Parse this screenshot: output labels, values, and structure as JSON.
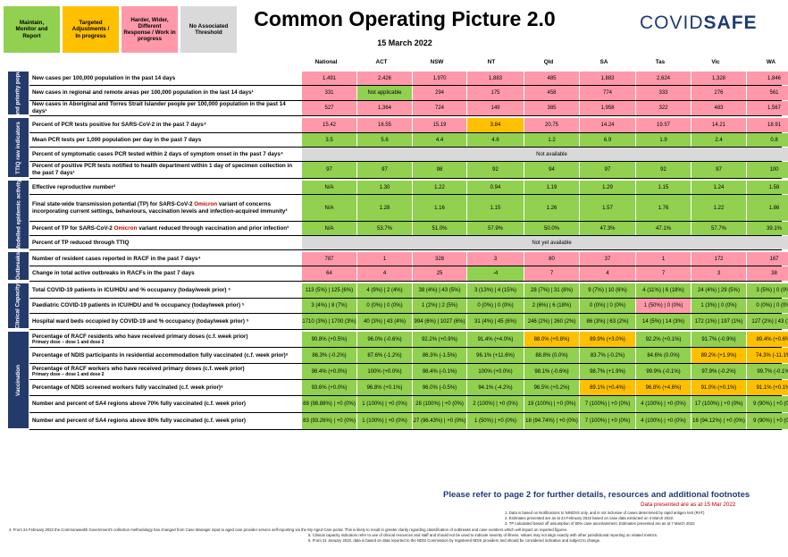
{
  "legend": [
    {
      "label": "Maintain,\nMonitor and\nReport",
      "color": "#92d050"
    },
    {
      "label": "Targeted\nAdjustments /\nIn progress",
      "color": "#ffc000"
    },
    {
      "label": "Harder, Wider,\nDifferent\nResponse / Work in\nprogress",
      "color": "#ff99aa"
    },
    {
      "label": "No Associated\nThreshold",
      "color": "#d9d9d9"
    }
  ],
  "header": {
    "title": "Common Operating Picture 2.0",
    "date": "15 March 2022",
    "brand_a": "COVID",
    "brand_b": "SAFE"
  },
  "columns": [
    "National",
    "ACT",
    "NSW",
    "NT",
    "Qld",
    "SA",
    "Tas",
    "Vic",
    "WA"
  ],
  "groups": [
    {
      "name": "Cases and priority populations"
    },
    {
      "name": "TTIQ raw indicators"
    },
    {
      "name": "Modelled epidemic activity"
    },
    {
      "name": "Outbreaks"
    },
    {
      "name": "Clinical Capacity"
    },
    {
      "name": "Vaccination"
    }
  ],
  "rows": [
    {
      "label": "New cases per 100,000 population in the past 14 days",
      "sub": "",
      "values": [
        "1,491",
        "2,426",
        "1,970",
        "1,883",
        "485",
        "1,883",
        "2,624",
        "1,328",
        "1,846"
      ],
      "colors": [
        "p",
        "p",
        "p",
        "p",
        "p",
        "p",
        "p",
        "p",
        "p"
      ]
    },
    {
      "label": "New cases in regional and remote areas per 100,000 population in the last 14 days¹",
      "sub": "",
      "values": [
        "331",
        "Not applicable",
        "294",
        "175",
        "458",
        "774",
        "333",
        "276",
        "561"
      ],
      "colors": [
        "p",
        "g",
        "p",
        "p",
        "p",
        "p",
        "p",
        "p",
        "p"
      ]
    },
    {
      "label": "New cases in Aboriginal and Torres Strait Islander people per 100,000 population in the past 14 days¹",
      "sub": "",
      "values": [
        "527",
        "1,364",
        "724",
        "149",
        "385",
        "1,958",
        "322",
        "483",
        "1,567"
      ],
      "colors": [
        "p",
        "p",
        "p",
        "p",
        "p",
        "p",
        "p",
        "p",
        "p"
      ]
    },
    {
      "label": "Percent of PCR tests positive for SARS-CoV-2 in the past 7 days⁴",
      "sub": "",
      "values": [
        "15.42",
        "16.55",
        "15.19",
        "3.84",
        "20.75",
        "14.24",
        "19.57",
        "14.21",
        "18.91"
      ],
      "colors": [
        "p",
        "p",
        "p",
        "o",
        "p",
        "p",
        "p",
        "p",
        "p"
      ]
    },
    {
      "label": "Mean PCR tests per 1,000 population per day in the past 7 days",
      "sub": "",
      "values": [
        "3.5",
        "5.6",
        "4.4",
        "4.6",
        "1.2",
        "6.9",
        "1.9",
        "2.4",
        "0.8"
      ],
      "colors": [
        "g",
        "g",
        "g",
        "g",
        "g",
        "g",
        "g",
        "g",
        "g"
      ]
    },
    {
      "label": "Percent of symptomatic cases PCR tested within 2 days of symptom onset in the past 7 days⁴",
      "sub": "",
      "merged": "Not available"
    },
    {
      "label": "Percent of positive PCR tests notified to health department within 1 day of specimen collection in the past 7 days¹",
      "sub": "",
      "values": [
        "97",
        "97",
        "98",
        "92",
        "94",
        "97",
        "92",
        "97",
        "100"
      ],
      "colors": [
        "G",
        "G",
        "G",
        "G",
        "G",
        "G",
        "G",
        "G",
        "G"
      ]
    },
    {
      "label": "Effective reproductive number²",
      "sub": "",
      "values": [
        "N/A",
        "1.30",
        "1.22",
        "0.94",
        "1.19",
        "1.29",
        "1.15",
        "1.24",
        "1.58"
      ],
      "colors": [
        "g",
        "g",
        "g",
        "g",
        "g",
        "g",
        "g",
        "g",
        "g"
      ]
    },
    {
      "label": "Final state-wide transmission potential (TP) for SARS-CoV-2 Omicron variant of concerns incorporating current settings, behaviours, vaccination levels and infection-acquired immunity³",
      "sub": "",
      "values": [
        "N/A",
        "1.28",
        "1.16",
        "1.15",
        "1.26",
        "1.57",
        "1.76",
        "1.22",
        "1.86"
      ],
      "colors": [
        "g",
        "g",
        "g",
        "g",
        "g",
        "g",
        "g",
        "g",
        "g"
      ]
    },
    {
      "label": "Percent of TP for SARS-CoV-2 Omicron variant reduced through vaccination and prior infection³",
      "sub": "",
      "values": [
        "N/A",
        "53.7%",
        "51.0%",
        "57.9%",
        "50.0%",
        "47.3%",
        "47.1%",
        "57.7%",
        "39.1%"
      ],
      "colors": [
        "g",
        "g",
        "g",
        "g",
        "g",
        "g",
        "g",
        "g",
        "g"
      ]
    },
    {
      "label": "Percent of TP reduced through TTIQ",
      "sub": "",
      "merged": "Not yet available"
    },
    {
      "label": "Number of resident cases reported in RACF in the past 7 days⁴",
      "sub": "",
      "values": [
        "787",
        "1",
        "328",
        "3",
        "80",
        "37",
        "1",
        "172",
        "167"
      ],
      "colors": [
        "p",
        "p",
        "p",
        "p",
        "p",
        "p",
        "p",
        "p",
        "p"
      ]
    },
    {
      "label": "Change in total active outbreaks in RACFs in the past 7 days",
      "sub": "",
      "values": [
        "64",
        "4",
        "25",
        "-4",
        "7",
        "4",
        "7",
        "3",
        "38"
      ],
      "colors": [
        "p",
        "p",
        "p",
        "G",
        "p",
        "p",
        "p",
        "p",
        "p"
      ]
    },
    {
      "label": "Total COVID-19 patients in ICU/HDU and % occupancy (today/week prior) ⁵",
      "sub": "",
      "values": [
        "113 (5%) | 125 (6%)",
        "4 (9%) | 2 (4%)",
        "38 (4%) | 43 (5%)",
        "3 (13%) | 4 (15%)",
        "28 (7%) | 31 (8%)",
        "9 (7%) | 10 (6%)",
        "4 (11%) | 6 (18%)",
        "24 (4%) | 29 (5%)",
        "3 (5%) | 0 (0%)"
      ],
      "colors": [
        "g",
        "g",
        "g",
        "g",
        "g",
        "g",
        "g",
        "g",
        "g"
      ]
    },
    {
      "label": "Paediatric COVID-19 patients in ICU/HDU and % occupancy (today/week prior) ⁵",
      "sub": "",
      "values": [
        "3 (4%) | 8 (7%)",
        "0 (0%) | 0 (0%)",
        "1 (2%) | 2 (5%)",
        "0 (0%) | 0 (0%)",
        "2 (6%) | 6 (18%)",
        "0 (0%) | 0 (0%)",
        "1 (50%) | 0 (0%)",
        "1 (3%) | 0 (0%)",
        "0 (0%) | 0 (0%)"
      ],
      "colors": [
        "g",
        "g",
        "g",
        "g",
        "g",
        "g",
        "p",
        "g",
        "g"
      ]
    },
    {
      "label": "Hospital ward beds occupied by COVID-19 and % occupancy (today/week prior) ⁵",
      "sub": "",
      "values": [
        "1710 (3%) | 1700 (3%)",
        "40 (3%) | 43 (4%)",
        "994 (6%) | 1027 (6%)",
        "31 (4%) | 45 (6%)",
        "246 (2%) | 260 (2%)",
        "86 (3%) | 63 (2%)",
        "14 (5%) | 14 (3%)",
        "172 (1%) | 197 (1%)",
        "127 (2%) | 43 (1%)"
      ],
      "colors": [
        "g",
        "g",
        "g",
        "g",
        "g",
        "g",
        "g",
        "g",
        "g"
      ]
    },
    {
      "label": "Percentage of RACF residents who have received primary doses (c.f. week prior)",
      "sub": "Primary dose – dose 1 and dose 2",
      "values": [
        "90.8% (+0.5%)",
        "96.0% (-0.6%)",
        "92.2% (+0.9%)",
        "91.4% (+4.0%)",
        "88.0% (+0.8%)",
        "89.9% (+3.0%)",
        "92.2% (+0.1%)",
        "91.7% (-0.9%)",
        "89.4% (+0.6%)"
      ],
      "colors": [
        "g",
        "g",
        "g",
        "g",
        "o",
        "o",
        "g",
        "g",
        "o"
      ]
    },
    {
      "label": "Percentage of NDIS participants in residential accommodation fully vaccinated (c.f. week prior)⁶",
      "sub": "",
      "values": [
        "86.3% (-0.2%)",
        "87.6% (-1.2%)",
        "86.3% (-1.5%)",
        "96.1% (+11.6%)",
        "88.8% (0.0%)",
        "83.7% (-0.2%)",
        "84.6% (0.0%)",
        "89.2% (+1.9%)",
        "74.3% (-11.1%)"
      ],
      "colors": [
        "g",
        "g",
        "g",
        "g",
        "g",
        "g",
        "g",
        "o",
        "o"
      ]
    },
    {
      "label": "Percentage of RACF workers who have received primary doses (c.f. week prior)",
      "sub": "Primary dose – dose 1 and dose 2",
      "values": [
        "98.4% (+0.0%)",
        "100% (+0.0%)",
        "98.4% (-0.1%)",
        "100% (+0.0%)",
        "98.1% (-0.6%)",
        "98.7% (+1.9%)",
        "99.9% (-0.1%)",
        "97.9% (-0.2%)",
        "99.7% (-0.1%)"
      ],
      "colors": [
        "g",
        "g",
        "g",
        "g",
        "g",
        "g",
        "g",
        "g",
        "g"
      ]
    },
    {
      "label": "Percentage of NDIS screened workers fully vaccinated (c.f. week prior)⁶",
      "sub": "",
      "values": [
        "93.6% (+0.0%)",
        "96.8% (+0.1%)",
        "96.0% (-0.5%)",
        "94.1% (-4.2%)",
        "98.5% (+0.2%)",
        "89.1% (+0.4%)",
        "96.8% (+4.6%)",
        "91.0% (+0.1%)",
        "91.1% (+0.1%)"
      ],
      "colors": [
        "g",
        "g",
        "g",
        "g",
        "g",
        "o",
        "o",
        "o",
        "o"
      ]
    },
    {
      "label": "Number and percent of SA4 regions above 70% fully vaccinated (c.f. week prior)",
      "sub": "",
      "values": [
        "88 (98.88%) | +0 (0%)",
        "1 (100%) | +0 (0%)",
        "28 (100%) | +0 (0%)",
        "2 (100%) | +0 (0%)",
        "19 (100%) | +0 (0%)",
        "7 (100%) | +0 (0%)",
        "4 (100%) | +0 (0%)",
        "17 (100%) | +0 (0%)",
        "9 (90%) | +0 (0%)"
      ],
      "colors": [
        "g",
        "g",
        "g",
        "g",
        "g",
        "g",
        "g",
        "g",
        "g"
      ]
    },
    {
      "label": "Number and percent of SA4 regions above 80% fully vaccinated (c.f. week prior)",
      "sub": "",
      "values": [
        "83 (93.26%) | +0 (0%)",
        "1 (100%) | +0 (0%)",
        "27 (96.43%) | +0 (0%)",
        "1 (50%) | +0 (0%)",
        "18 (94.74%) | +0 (0%)",
        "7 (100%) | +0 (0%)",
        "4 (100%) | +0 (0%)",
        "16 (94.12%) | +0 (0%)",
        "9 (90%) | +0 (0%)"
      ],
      "colors": [
        "g",
        "g",
        "g",
        "g",
        "g",
        "g",
        "g",
        "g",
        "g"
      ]
    }
  ],
  "colors": {
    "g": "#92d050",
    "G": "#92d050",
    "p": "#ff99aa",
    "o": "#ffc000",
    "n": "#d9d9d9",
    "header_group": "#243a6b"
  },
  "footer": {
    "message": "Please refer to page 2 for further details, resources and additional footnotes",
    "presented": "Data presented are as at 15 Mar 2022",
    "notes": [
      "1.     Data is based on Notifications to NINDSS only, and is not inclusive of cases determined by rapid antigen test (RAT)",
      "2.     Estimates presented are as at 24 February 2022 based on case data extracted on 4 March 2022.",
      "3.     TP calculated based off assumption of 50% case ascertainment. Estimates presented are as at 7 March 2022",
      "4.     From 24 February 2022 the Commonwealth Government's collection methodology has changed from Case Manager input to aged care provider service self-reporting via the My Aged Care portal. This is likely to result in greater clarity regarding classification of outbreaks and case numbers which will impact on reported figures.",
      "5.     Clinical capacity indicators refer to use of clinical resources and staff and should not be used to indicate severity of illness. Values may not align exactly with other jurisdictional reporting on related metrics.",
      "6.     From 21 January 2022, data is based on data reported to the NDIS Commission by registered NDIS providers and should be considered indicative and subject to change."
    ]
  }
}
